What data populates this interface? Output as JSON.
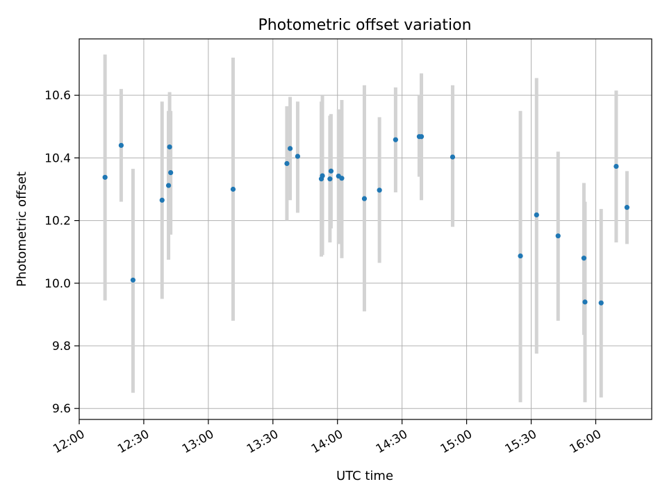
{
  "chart_data": {
    "type": "scatter",
    "title": "Photometric offset variation",
    "xlabel": "UTC time",
    "ylabel": "Photometric offset",
    "xlim": [
      720,
      986
    ],
    "ylim": [
      9.565,
      10.78
    ],
    "grid": true,
    "x_ticks": [
      {
        "value": 720,
        "label": "12:00"
      },
      {
        "value": 750,
        "label": "12:30"
      },
      {
        "value": 780,
        "label": "13:00"
      },
      {
        "value": 810,
        "label": "13:30"
      },
      {
        "value": 840,
        "label": "14:00"
      },
      {
        "value": 870,
        "label": "14:30"
      },
      {
        "value": 900,
        "label": "15:00"
      },
      {
        "value": 930,
        "label": "15:30"
      },
      {
        "value": 960,
        "label": "16:00"
      }
    ],
    "y_ticks": [
      {
        "value": 9.6,
        "label": "9.6"
      },
      {
        "value": 9.8,
        "label": "9.8"
      },
      {
        "value": 10.0,
        "label": "10.0"
      },
      {
        "value": 10.2,
        "label": "10.2"
      },
      {
        "value": 10.4,
        "label": "10.4"
      },
      {
        "value": 10.6,
        "label": "10.6"
      }
    ],
    "x_units": "minutes after 00:00 UTC",
    "points": [
      {
        "x": 732.0,
        "y": 10.338,
        "lo": 9.945,
        "hi": 10.73
      },
      {
        "x": 739.5,
        "y": 10.44,
        "lo": 10.26,
        "hi": 10.62
      },
      {
        "x": 745.0,
        "y": 10.01,
        "lo": 9.65,
        "hi": 10.365
      },
      {
        "x": 758.5,
        "y": 10.265,
        "lo": 9.95,
        "hi": 10.58
      },
      {
        "x": 761.5,
        "y": 10.312,
        "lo": 10.075,
        "hi": 10.55
      },
      {
        "x": 762.0,
        "y": 10.435,
        "lo": 10.255,
        "hi": 10.61
      },
      {
        "x": 762.5,
        "y": 10.353,
        "lo": 10.155,
        "hi": 10.55
      },
      {
        "x": 791.5,
        "y": 10.3,
        "lo": 9.88,
        "hi": 10.72
      },
      {
        "x": 816.5,
        "y": 10.382,
        "lo": 10.2,
        "hi": 10.565
      },
      {
        "x": 818.0,
        "y": 10.43,
        "lo": 10.265,
        "hi": 10.595
      },
      {
        "x": 821.5,
        "y": 10.405,
        "lo": 10.225,
        "hi": 10.58
      },
      {
        "x": 832.5,
        "y": 10.333,
        "lo": 10.085,
        "hi": 10.58
      },
      {
        "x": 833.0,
        "y": 10.343,
        "lo": 10.09,
        "hi": 10.6
      },
      {
        "x": 836.5,
        "y": 10.333,
        "lo": 10.13,
        "hi": 10.535
      },
      {
        "x": 837.0,
        "y": 10.358,
        "lo": 10.175,
        "hi": 10.54
      },
      {
        "x": 840.5,
        "y": 10.342,
        "lo": 10.125,
        "hi": 10.555
      },
      {
        "x": 842.0,
        "y": 10.335,
        "lo": 10.08,
        "hi": 10.585
      },
      {
        "x": 852.5,
        "y": 10.27,
        "lo": 9.91,
        "hi": 10.632
      },
      {
        "x": 859.5,
        "y": 10.297,
        "lo": 10.065,
        "hi": 10.53
      },
      {
        "x": 867.0,
        "y": 10.458,
        "lo": 10.29,
        "hi": 10.625
      },
      {
        "x": 878.0,
        "y": 10.468,
        "lo": 10.34,
        "hi": 10.6
      },
      {
        "x": 879.0,
        "y": 10.468,
        "lo": 10.265,
        "hi": 10.67
      },
      {
        "x": 893.5,
        "y": 10.403,
        "lo": 10.18,
        "hi": 10.632
      },
      {
        "x": 925.0,
        "y": 10.087,
        "lo": 9.62,
        "hi": 10.55
      },
      {
        "x": 932.5,
        "y": 10.218,
        "lo": 9.775,
        "hi": 10.655
      },
      {
        "x": 942.5,
        "y": 10.151,
        "lo": 9.88,
        "hi": 10.42
      },
      {
        "x": 954.5,
        "y": 10.08,
        "lo": 9.835,
        "hi": 10.32
      },
      {
        "x": 955.0,
        "y": 9.94,
        "lo": 9.62,
        "hi": 10.26
      },
      {
        "x": 962.5,
        "y": 9.937,
        "lo": 9.635,
        "hi": 10.237
      },
      {
        "x": 969.5,
        "y": 10.373,
        "lo": 10.13,
        "hi": 10.615
      },
      {
        "x": 974.5,
        "y": 10.242,
        "lo": 10.125,
        "hi": 10.358
      }
    ]
  }
}
